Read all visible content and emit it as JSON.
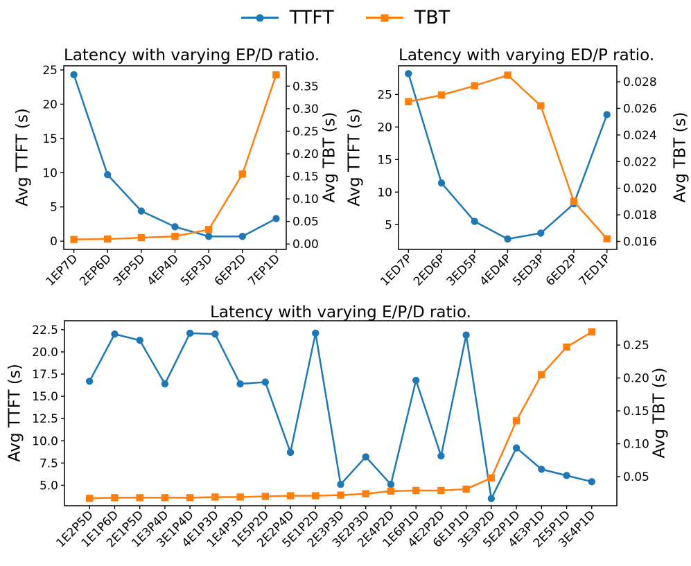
{
  "figure": {
    "background": "#ffffff",
    "colors": {
      "ttft": "#1f77b4",
      "tbt": "#ff7f0e",
      "axis": "#000000"
    },
    "legend": {
      "items": [
        {
          "label": "TTFT",
          "series": "ttft",
          "marker": "circle"
        },
        {
          "label": "TBT",
          "series": "tbt",
          "marker": "square"
        }
      ]
    }
  },
  "chart_data": [
    {
      "id": "epd",
      "type": "line",
      "title": "Latency with varying EP/D ratio.",
      "ylabel_left": "Avg TTFT (s)",
      "ylabel_right": "Avg TBT (s)",
      "grid": false,
      "categories": [
        "1EP7D",
        "2EP6D",
        "3EP5D",
        "4EP4D",
        "5EP3D",
        "6EP2D",
        "7EP1D"
      ],
      "series": [
        {
          "name": "TTFT",
          "axis": "left",
          "marker": "circle",
          "color": "#1f77b4",
          "values": [
            24.3,
            9.7,
            4.4,
            2.1,
            0.7,
            0.7,
            3.3
          ]
        },
        {
          "name": "TBT",
          "axis": "right",
          "marker": "square",
          "color": "#ff7f0e",
          "values": [
            0.01,
            0.011,
            0.014,
            0.017,
            0.032,
            0.155,
            0.375
          ]
        }
      ],
      "left_axis": {
        "ticks": [
          0,
          5,
          10,
          15,
          20,
          25
        ],
        "labels": [
          "0",
          "5",
          "10",
          "15",
          "20",
          "25"
        ],
        "range": [
          -1.2,
          25.6
        ]
      },
      "right_axis": {
        "ticks": [
          0.0,
          0.05,
          0.1,
          0.15,
          0.2,
          0.25,
          0.3,
          0.35
        ],
        "labels": [
          "0.00",
          "0.05",
          "0.10",
          "0.15",
          "0.20",
          "0.25",
          "0.30",
          "0.35"
        ],
        "range": [
          -0.012,
          0.395
        ]
      }
    },
    {
      "id": "edp",
      "type": "line",
      "title": "Latency with varying ED/P ratio.",
      "ylabel_left": "Avg TTFT (s)",
      "ylabel_right": "Avg TBT (s)",
      "grid": false,
      "categories": [
        "1ED7P",
        "2ED6P",
        "3ED5P",
        "4ED4P",
        "5ED3P",
        "6ED2P",
        "7ED1P"
      ],
      "series": [
        {
          "name": "TTFT",
          "axis": "left",
          "marker": "circle",
          "color": "#1f77b4",
          "values": [
            28.2,
            11.4,
            5.5,
            2.8,
            3.7,
            8.2,
            21.9
          ]
        },
        {
          "name": "TBT",
          "axis": "right",
          "marker": "square",
          "color": "#ff7f0e",
          "values": [
            0.0265,
            0.027,
            0.0277,
            0.0285,
            0.0262,
            0.019,
            0.0162
          ]
        }
      ],
      "left_axis": {
        "ticks": [
          5,
          10,
          15,
          20,
          25
        ],
        "labels": [
          "5",
          "10",
          "15",
          "20",
          "25"
        ],
        "range": [
          1.2,
          29.4
        ]
      },
      "right_axis": {
        "ticks": [
          0.016,
          0.018,
          0.02,
          0.022,
          0.024,
          0.026,
          0.028
        ],
        "labels": [
          "0.016",
          "0.018",
          "0.020",
          "0.022",
          "0.024",
          "0.026",
          "0.028"
        ],
        "range": [
          0.0154,
          0.0292
        ]
      }
    },
    {
      "id": "e-p-d",
      "type": "line",
      "title": "Latency with varying E/P/D ratio.",
      "ylabel_left": "Avg TTFT (s)",
      "ylabel_right": "Avg TBT (s)",
      "grid": false,
      "categories": [
        "1E2P5D",
        "1E1P6D",
        "2E1P5D",
        "1E3P4D",
        "3E1P4D",
        "4E1P3D",
        "1E4P3D",
        "1E5P2D",
        "2E2P4D",
        "5E1P2D",
        "2E3P3D",
        "3E2P3D",
        "2E4P2D",
        "1E6P1D",
        "4E2P2D",
        "6E1P1D",
        "3E3P2D",
        "5E2P1D",
        "4E3P1D",
        "2E5P1D",
        "3E4P1D"
      ],
      "series": [
        {
          "name": "TTFT",
          "axis": "left",
          "marker": "circle",
          "color": "#1f77b4",
          "values": [
            16.7,
            22.0,
            21.3,
            16.4,
            22.1,
            22.0,
            16.4,
            16.6,
            8.7,
            22.1,
            5.1,
            8.2,
            5.1,
            16.8,
            8.3,
            21.9,
            3.5,
            9.2,
            6.8,
            6.1,
            5.4
          ]
        },
        {
          "name": "TBT",
          "axis": "right",
          "marker": "square",
          "color": "#ff7f0e",
          "values": [
            0.017,
            0.018,
            0.018,
            0.018,
            0.018,
            0.019,
            0.019,
            0.02,
            0.021,
            0.021,
            0.022,
            0.024,
            0.028,
            0.029,
            0.029,
            0.031,
            0.048,
            0.135,
            0.205,
            0.247,
            0.27
          ]
        }
      ],
      "left_axis": {
        "ticks": [
          5.0,
          7.5,
          10.0,
          12.5,
          15.0,
          17.5,
          20.0,
          22.5
        ],
        "labels": [
          "5.0",
          "7.5",
          "10.0",
          "12.5",
          "15.0",
          "17.5",
          "20.0",
          "22.5"
        ],
        "range": [
          2.7,
          23.5
        ]
      },
      "right_axis": {
        "ticks": [
          0.05,
          0.1,
          0.15,
          0.2,
          0.25
        ],
        "labels": [
          "0.05",
          "0.10",
          "0.15",
          "0.20",
          "0.25"
        ],
        "range": [
          0.0058,
          0.287
        ]
      }
    }
  ]
}
